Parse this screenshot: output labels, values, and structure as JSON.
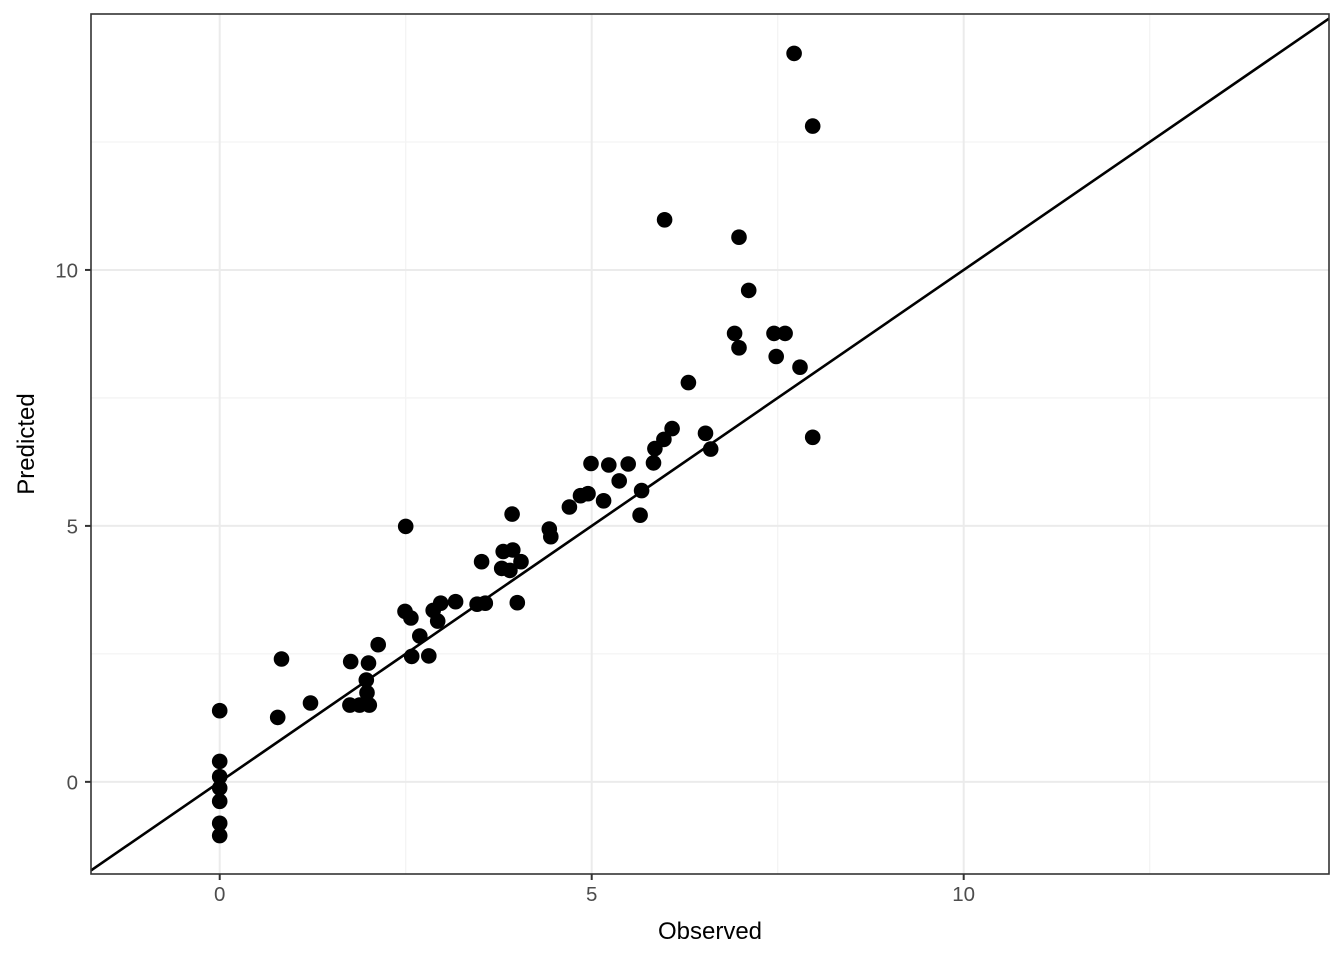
{
  "figure": {
    "background": "#FFFFFF"
  },
  "chart_data": {
    "type": "scatter",
    "title": "",
    "xlabel": "Observed",
    "ylabel": "Predicted",
    "xlim": [
      -1.73,
      14.91
    ],
    "ylim": [
      -1.8,
      15.0
    ],
    "grid": true,
    "legend": "none",
    "x_ticks": {
      "values": [
        0,
        5,
        10
      ],
      "labels": [
        "0",
        "5",
        "10"
      ]
    },
    "y_ticks": {
      "values": [
        0,
        5,
        10
      ],
      "labels": [
        "0",
        "5",
        "10"
      ]
    },
    "x_minor_gridlines": [
      2.5,
      7.5,
      12.5
    ],
    "y_minor_gridlines": [
      2.5,
      7.5,
      12.5
    ],
    "reference_line": {
      "kind": "identity",
      "slope": 1,
      "intercept": 0
    },
    "colors": {
      "point": "#000000",
      "line": "#000000",
      "grid_major": "#EBEBEB",
      "grid_minor": "#F4F4F4",
      "panel_border": "#333333",
      "tick": "#333333",
      "tick_label": "#4D4D4D",
      "axis_title": "#000000",
      "panel_background": "#FFFFFF"
    },
    "points": [
      [
        0,
        1.39
      ],
      [
        0,
        0.4
      ],
      [
        0,
        0.1
      ],
      [
        0,
        -0.12
      ],
      [
        0,
        -0.38
      ],
      [
        0,
        -0.81
      ],
      [
        0,
        -1.05
      ],
      [
        0.78,
        1.26
      ],
      [
        0.83,
        2.4
      ],
      [
        1.22,
        1.54
      ],
      [
        1.75,
        1.5
      ],
      [
        1.88,
        1.5
      ],
      [
        2.01,
        1.5
      ],
      [
        1.97,
        1.99
      ],
      [
        1.98,
        1.74
      ],
      [
        1.76,
        2.35
      ],
      [
        2.0,
        2.32
      ],
      [
        2.13,
        2.68
      ],
      [
        2.49,
        3.33
      ],
      [
        2.57,
        3.2
      ],
      [
        2.87,
        3.35
      ],
      [
        2.93,
        3.14
      ],
      [
        2.97,
        3.49
      ],
      [
        3.17,
        3.52
      ],
      [
        2.69,
        2.85
      ],
      [
        2.58,
        2.45
      ],
      [
        2.81,
        2.46
      ],
      [
        2.5,
        4.99
      ],
      [
        3.46,
        3.47
      ],
      [
        3.57,
        3.49
      ],
      [
        4.0,
        3.5
      ],
      [
        3.52,
        4.3
      ],
      [
        3.81,
        4.5
      ],
      [
        3.94,
        4.53
      ],
      [
        3.79,
        4.17
      ],
      [
        3.9,
        4.13
      ],
      [
        4.05,
        4.3
      ],
      [
        3.93,
        5.23
      ],
      [
        4.43,
        4.94
      ],
      [
        4.45,
        4.79
      ],
      [
        4.7,
        5.37
      ],
      [
        4.85,
        5.59
      ],
      [
        4.95,
        5.63
      ],
      [
        5.16,
        5.49
      ],
      [
        4.99,
        6.22
      ],
      [
        5.23,
        6.19
      ],
      [
        5.49,
        6.21
      ],
      [
        5.37,
        5.88
      ],
      [
        5.67,
        5.69
      ],
      [
        5.65,
        5.21
      ],
      [
        5.83,
        6.23
      ],
      [
        5.85,
        6.51
      ],
      [
        5.97,
        6.69
      ],
      [
        6.08,
        6.9
      ],
      [
        6.53,
        6.81
      ],
      [
        6.6,
        6.5
      ],
      [
        6.3,
        7.8
      ],
      [
        5.98,
        10.98
      ],
      [
        6.98,
        10.64
      ],
      [
        7.11,
        9.6
      ],
      [
        6.92,
        8.76
      ],
      [
        6.98,
        8.48
      ],
      [
        7.45,
        8.76
      ],
      [
        7.6,
        8.76
      ],
      [
        7.48,
        8.31
      ],
      [
        7.8,
        8.1
      ],
      [
        7.72,
        14.23
      ],
      [
        7.97,
        12.81
      ],
      [
        7.97,
        6.73
      ]
    ]
  }
}
